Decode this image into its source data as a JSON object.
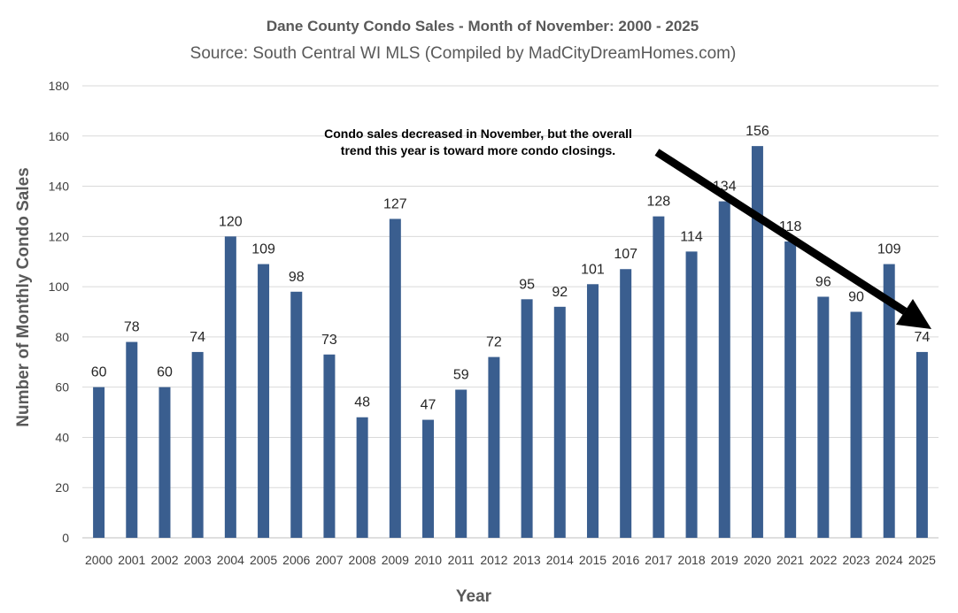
{
  "chart_data": {
    "type": "bar",
    "title": "Dane County Condo Sales - Month of November: 2000 - 2025",
    "subtitle": "Source: South Central WI MLS (Compiled by MadCityDreamHomes.com)",
    "xlabel": "Year",
    "ylabel": "Number of Monthly Condo Sales",
    "ylim": [
      0,
      180
    ],
    "yticks": [
      0,
      20,
      40,
      60,
      80,
      100,
      120,
      140,
      160,
      180
    ],
    "grid": true,
    "categories": [
      "2000",
      "2001",
      "2002",
      "2003",
      "2004",
      "2005",
      "2006",
      "2007",
      "2008",
      "2009",
      "2010",
      "2011",
      "2012",
      "2013",
      "2014",
      "2015",
      "2016",
      "2017",
      "2018",
      "2019",
      "2020",
      "2021",
      "2022",
      "2023",
      "2024",
      "2025"
    ],
    "values": [
      60,
      78,
      60,
      74,
      120,
      109,
      98,
      73,
      48,
      127,
      47,
      59,
      72,
      95,
      92,
      101,
      107,
      128,
      114,
      134,
      156,
      118,
      96,
      90,
      109,
      74
    ],
    "bar_color": "#3a5e8f",
    "annotation": {
      "line1": "Condo sales decreased in November, but the overall",
      "line2": "trend this year is toward more condo closings.",
      "arrow": {
        "from_year": "2020",
        "to_year": "2025",
        "direction": "down-right"
      }
    }
  }
}
